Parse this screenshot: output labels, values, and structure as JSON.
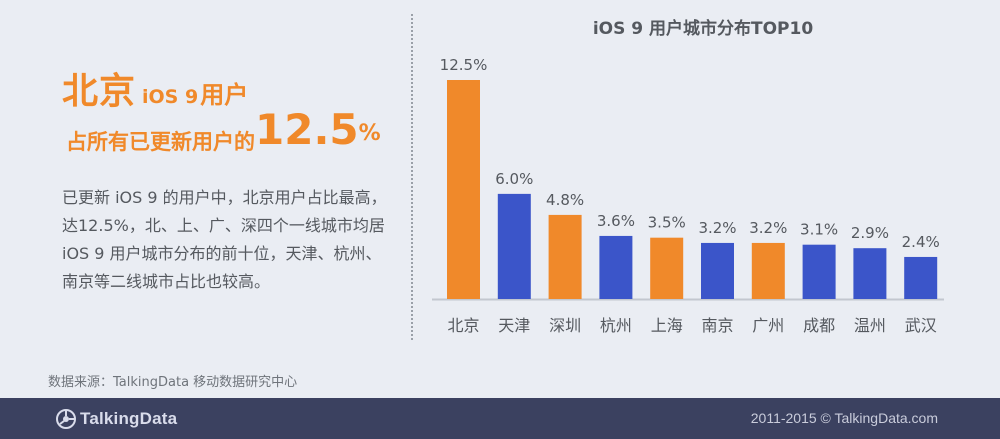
{
  "headline": {
    "city": "北京",
    "os": "iOS 9",
    "users": "用户",
    "line2_text": "占所有已更新用户的",
    "pct_value": "12.5",
    "pct_sign": "%"
  },
  "description": "已更新 iOS 9 的用户中，北京用户占比最高，达12.5%，北、上、广、深四个一线城市均居 iOS 9 用户城市分布的前十位，天津、杭州、南京等二线城市占比也较高。",
  "source": "数据来源：TalkingData 移动数据研究中心",
  "footer": {
    "logo_text": "TalkingData",
    "copyright": "2011-2015 © TalkingData.com"
  },
  "chart_data": {
    "type": "bar",
    "title": "iOS 9 用户城市分布TOP10",
    "categories": [
      "北京",
      "天津",
      "深圳",
      "杭州",
      "上海",
      "南京",
      "广州",
      "成都",
      "温州",
      "武汉"
    ],
    "values": [
      12.5,
      6.0,
      4.8,
      3.6,
      3.5,
      3.2,
      3.2,
      3.1,
      2.9,
      2.4
    ],
    "value_labels": [
      "12.5%",
      "6.0%",
      "4.8%",
      "3.6%",
      "3.5%",
      "3.2%",
      "3.2%",
      "3.1%",
      "2.9%",
      "2.4%"
    ],
    "colors": [
      "#f0892a",
      "#3b55c9",
      "#f0892a",
      "#3b55c9",
      "#f0892a",
      "#3b55c9",
      "#f0892a",
      "#3b55c9",
      "#3b55c9",
      "#3b55c9"
    ],
    "ylim": [
      0,
      12.5
    ],
    "grid": false,
    "legend": "none",
    "axis_color": "#c3c7cf",
    "label_color": "#55595f"
  }
}
